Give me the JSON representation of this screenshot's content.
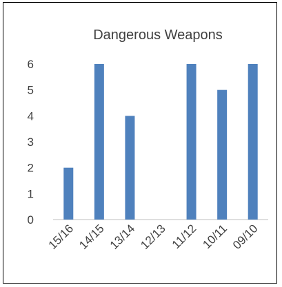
{
  "chart_data": {
    "type": "bar",
    "title": "Dangerous Weapons",
    "categories": [
      "15/16",
      "14/15",
      "13/14",
      "12/13",
      "11/12",
      "10/11",
      "09/10"
    ],
    "series": [
      {
        "values": [
          2,
          6,
          4,
          0,
          6,
          5,
          6
        ]
      }
    ],
    "ylim": [
      0,
      6
    ],
    "yticks": [
      0,
      1,
      2,
      3,
      4,
      5,
      6
    ],
    "grid": false,
    "legend": "none",
    "colors": {
      "bar": "#4f81bd",
      "axis": "#bfbfbf",
      "text": "#404040"
    }
  }
}
